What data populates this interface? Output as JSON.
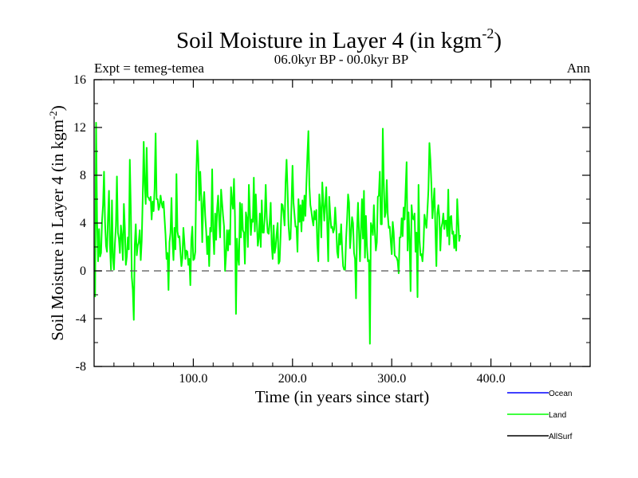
{
  "chart_data": {
    "type": "line",
    "title": "Soil Moisture in Layer 4 (in kgm",
    "title_sup": "-2",
    "title_close": ")",
    "subtitle": "06.0kyr BP - 00.0kyr BP",
    "left_note": "Expt = temeg-temea",
    "right_note": "Ann",
    "xlabel": "Time (in years since start)",
    "ylabel": "Soil Moisture in Layer 4 (in kgm",
    "ylabel_sup": "-2",
    "ylabel_close": ")",
    "xlim": [
      0,
      500
    ],
    "ylim": [
      -8,
      16
    ],
    "x_ticks": [
      100,
      200,
      300,
      400
    ],
    "x_tick_labels": [
      "100.0",
      "200.0",
      "300.0",
      "400.0"
    ],
    "y_ticks": [
      -8,
      -4,
      0,
      4,
      8,
      12,
      16
    ],
    "y_tick_labels": [
      "-8",
      "-4",
      "0",
      "4",
      "8",
      "12",
      "16"
    ],
    "reference_line": 0,
    "series": [
      {
        "name": "Land",
        "color": "#00ff00",
        "x_start": 1,
        "x_step": 1,
        "values": [
          -2.2,
          12.4,
          4.2,
          0.8,
          3.5,
          1.2,
          1.5,
          4.2,
          5.5,
          8.3,
          4.1,
          2.1,
          1.6,
          4.5,
          6.7,
          2.1,
          0.1,
          5.9,
          1.1,
          0.1,
          2.3,
          3.8,
          7.9,
          3.2,
          2.7,
          1.5,
          3.8,
          2.9,
          0.9,
          5.6,
          3.6,
          0.5,
          1.2,
          2.8,
          1.8,
          9.3,
          5.2,
          -0.5,
          -1.6,
          -4.1,
          2.2,
          3.9,
          1.3,
          2.1,
          2.4,
          3.4,
          0.9,
          2.5,
          6.1,
          10.8,
          7.3,
          5.6,
          10.3,
          6.2,
          6.1,
          5.9,
          6.2,
          4.3,
          5.8,
          5.0,
          6.9,
          11.5,
          6.0,
          6.0,
          5.1,
          5.4,
          6.3,
          5.7,
          5.3,
          5.8,
          4.4,
          3.0,
          1.0,
          1.5,
          -1.6,
          2.4,
          3.2,
          6.1,
          2.5,
          0.9,
          3.6,
          1.8,
          8.1,
          3.3,
          2.8,
          2.9,
          1.6,
          0.4,
          1.1,
          3.6,
          2.4,
          1.0,
          1.7,
          1.6,
          0.5,
          1.0,
          -1.2,
          2.6,
          3.7,
          0.9,
          1.0,
          1.6,
          8.0,
          10.9,
          9.4,
          5.9,
          8.3,
          6.2,
          2.4,
          5.6,
          6.6,
          4.6,
          3.3,
          1.4,
          2.9,
          0.4,
          3.6,
          3.3,
          8.5,
          3.2,
          1.4,
          4.8,
          2.6,
          5.2,
          6.3,
          4.3,
          2.8,
          6.8,
          5.7,
          4.6,
          3.7,
          0.0,
          1.3,
          3.4,
          1.7,
          3.4,
          2.2,
          7.0,
          5.8,
          5.2,
          7.7,
          4.5,
          -3.6,
          2.7,
          1.1,
          0.5,
          5.7,
          2.8,
          5.6,
          3.4,
          3.2,
          0.6,
          4.9,
          4.4,
          2.0,
          7.2,
          5.0,
          3.0,
          4.3,
          4.1,
          7.8,
          3.3,
          6.4,
          4.2,
          2.1,
          2.7,
          4.8,
          2.0,
          5.9,
          3.2,
          3.2,
          4.5,
          7.2,
          4.5,
          3.2,
          3.1,
          4.1,
          5.7,
          2.2,
          1.0,
          3.8,
          1.5,
          2.0,
          3.1,
          4.0,
          0.6,
          0.8,
          3.0,
          5.6,
          5.5,
          4.8,
          3.8,
          7.4,
          9.3,
          6.8,
          3.8,
          2.6,
          2.7,
          5.7,
          8.8,
          5.7,
          4.7,
          3.7,
          3.7,
          1.6,
          6.0,
          4.1,
          5.5,
          3.3,
          5.9,
          4.2,
          6.3,
          4.6,
          7.3,
          9.7,
          11.7,
          7.1,
          5.5,
          5.0,
          4.3,
          3.8,
          5.0,
          4.3,
          5.1,
          2.2,
          0.8,
          6.4,
          5.2,
          2.8,
          7.4,
          5.8,
          4.2,
          5.6,
          7.0,
          3.8,
          0.8,
          6.2,
          4.7,
          3.6,
          3.7,
          3.2,
          3.5,
          5.3,
          3.8,
          1.6,
          1.1,
          3.1,
          2.2,
          3.9,
          1.9,
          0.4,
          0.1,
          0.1,
          2.7,
          4.3,
          6.4,
          5.7,
          1.9,
          3.1,
          4.5,
          4.0,
          1.5,
          1.0,
          -2.3,
          3.3,
          5.7,
          3.3,
          0.8,
          3.5,
          6.0,
          2.7,
          6.7,
          1.1,
          4.6,
          2.1,
          0.8,
          0.9,
          -6.1,
          4.0,
          3.7,
          3.0,
          5.5,
          3.3,
          1.7,
          2.4,
          6.2,
          6.3,
          8.3,
          3.9,
          3.9,
          11.9,
          7.4,
          4.5,
          4.9,
          7.6,
          4.7,
          3.6,
          3.7,
          2.5,
          1.4,
          4.1,
          3.2,
          1.3,
          1.2,
          1.1,
          0.8,
          -0.2,
          2.8,
          2.8,
          4.4,
          2.9,
          5.3,
          4.3,
          6.8,
          9.1,
          1.7,
          4.9,
          2.5,
          -1.7,
          5.5,
          4.4,
          4.3,
          4.8,
          1.6,
          3.2,
          -2.2,
          7.2,
          2.6,
          1.3,
          1.4,
          0.8,
          2.1,
          4.7,
          4.1,
          3.6,
          5.1,
          6.8,
          10.7,
          9.3,
          7.2,
          4.4,
          5.6,
          6.9,
          3.5,
          0.4,
          4.8,
          5.5,
          4.5,
          1.7,
          3.6,
          4.0,
          4.8,
          3.5,
          4.2,
          4.2,
          2.9,
          6.8,
          2.2,
          4.5,
          4.6,
          3.1,
          3.3,
          1.9,
          3.0,
          1.7,
          6.0,
          4.2,
          2.5,
          3.0
        ]
      }
    ],
    "legend": [
      {
        "name": "Ocean",
        "color": "#0000ff"
      },
      {
        "name": "Land",
        "color": "#00ff00"
      },
      {
        "name": "AllSurf",
        "color": "#000000"
      }
    ]
  }
}
